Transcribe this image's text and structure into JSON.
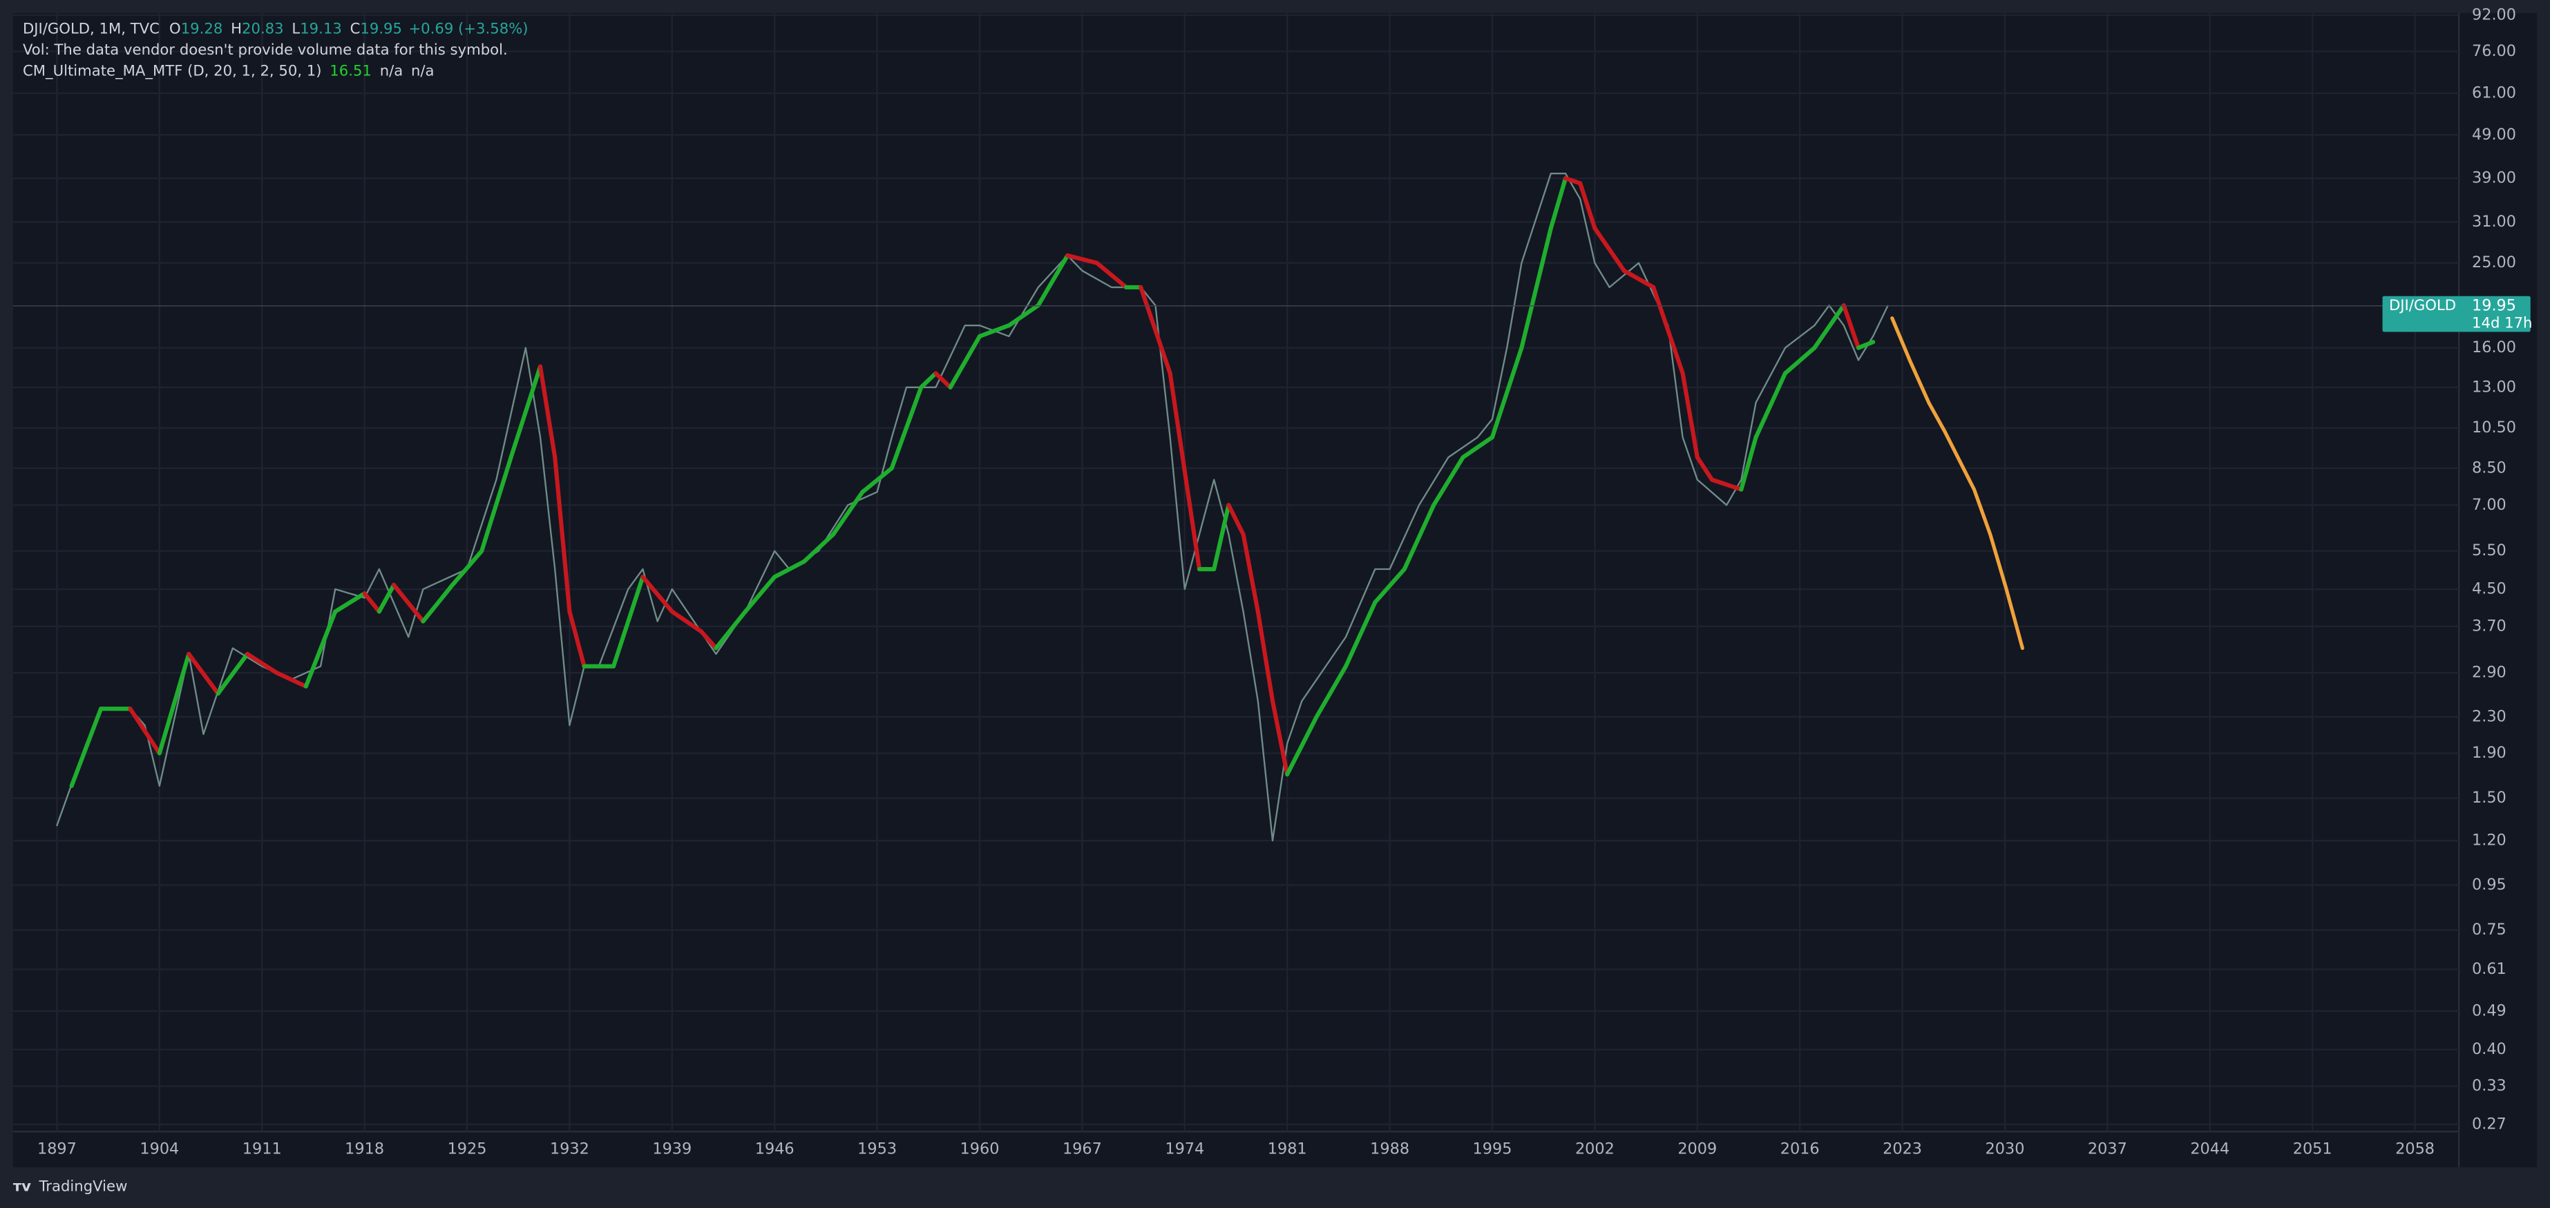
{
  "chart_data": {
    "type": "line",
    "log_scale": true,
    "grid": true,
    "header": {
      "symbol": "DJI/GOLD, 1M, TVC",
      "open_label": "O",
      "open": "19.28",
      "high_label": "H",
      "high": "20.83",
      "low_label": "L",
      "low": "19.13",
      "close_label": "C",
      "close": "19.95",
      "change": "+0.69 (+3.58%)"
    },
    "volume_note": "Vol: The data vendor doesn't provide volume data for this symbol.",
    "indicator": {
      "name": "CM_Ultimate_MA_MTF (D, 20, 1, 2, 50, 1)",
      "value": "16.51",
      "v2": "n/a",
      "v3": "n/a"
    },
    "last_price": {
      "symbol": "DJI/GOLD",
      "value": 19.95,
      "value_label": "19.95",
      "countdown": "14d 17h",
      "color": "#26a69a"
    },
    "brand": "TradingView",
    "xlim": [
      1894,
      2061
    ],
    "xticks": [
      1897,
      1904,
      1911,
      1918,
      1925,
      1932,
      1939,
      1946,
      1953,
      1960,
      1967,
      1974,
      1981,
      1988,
      1995,
      2002,
      2009,
      2016,
      2023,
      2030,
      2037,
      2044,
      2051,
      2058
    ],
    "ylim": [
      0.26,
      93
    ],
    "yticks": [
      {
        "value": 92,
        "label": "92.00"
      },
      {
        "value": 76,
        "label": "76.00"
      },
      {
        "value": 61,
        "label": "61.00"
      },
      {
        "value": 49,
        "label": "49.00"
      },
      {
        "value": 39,
        "label": "39.00"
      },
      {
        "value": 31,
        "label": "31.00"
      },
      {
        "value": 25,
        "label": "25.00"
      },
      {
        "value": 16,
        "label": "16.00"
      },
      {
        "value": 13,
        "label": "13.00"
      },
      {
        "value": 10.5,
        "label": "10.50"
      },
      {
        "value": 8.5,
        "label": "8.50"
      },
      {
        "value": 7,
        "label": "7.00"
      },
      {
        "value": 5.5,
        "label": "5.50"
      },
      {
        "value": 4.5,
        "label": "4.50"
      },
      {
        "value": 3.7,
        "label": "3.70"
      },
      {
        "value": 2.9,
        "label": "2.90"
      },
      {
        "value": 2.3,
        "label": "2.30"
      },
      {
        "value": 1.9,
        "label": "1.90"
      },
      {
        "value": 1.5,
        "label": "1.50"
      },
      {
        "value": 1.2,
        "label": "1.20"
      },
      {
        "value": 0.95,
        "label": "0.95"
      },
      {
        "value": 0.75,
        "label": "0.75"
      },
      {
        "value": 0.61,
        "label": "0.61"
      },
      {
        "value": 0.49,
        "label": "0.49"
      },
      {
        "value": 0.4,
        "label": "0.40"
      },
      {
        "value": 0.33,
        "label": "0.33"
      },
      {
        "value": 0.27,
        "label": "0.27"
      }
    ],
    "price": {
      "color": "#6f8c88",
      "x": [
        1897,
        1899,
        1900,
        1902,
        1903,
        1904,
        1906,
        1907,
        1909,
        1911,
        1913,
        1915,
        1916,
        1918,
        1919,
        1921,
        1922,
        1925,
        1927,
        1929,
        1930,
        1931,
        1932,
        1933,
        1934,
        1936,
        1937,
        1938,
        1939,
        1942,
        1944,
        1946,
        1947,
        1949,
        1951,
        1953,
        1954,
        1955,
        1957,
        1959,
        1960,
        1962,
        1964,
        1966,
        1967,
        1969,
        1971,
        1972,
        1973,
        1974,
        1975,
        1976,
        1977,
        1978,
        1979,
        1980,
        1981,
        1982,
        1985,
        1987,
        1988,
        1990,
        1992,
        1994,
        1995,
        1996,
        1997,
        1999,
        2000,
        2001,
        2002,
        2003,
        2005,
        2007,
        2008,
        2009,
        2011,
        2012,
        2013,
        2015,
        2017,
        2018,
        2019,
        2020,
        2021,
        2022
      ],
      "values": [
        1.3,
        2.0,
        2.4,
        2.4,
        2.2,
        1.6,
        3.2,
        2.1,
        3.3,
        3.0,
        2.8,
        3.0,
        4.5,
        4.3,
        5.0,
        3.5,
        4.5,
        5.0,
        8,
        16,
        10,
        5,
        2.2,
        3.0,
        3.0,
        4.5,
        5.0,
        3.8,
        4.5,
        3.2,
        4.0,
        5.5,
        5.0,
        5.5,
        7.0,
        7.5,
        10,
        13,
        13,
        18,
        18,
        17,
        22,
        26,
        24,
        22,
        22,
        20,
        10,
        4.5,
        6,
        8,
        6,
        4.0,
        2.5,
        1.2,
        2.0,
        2.5,
        3.5,
        5.0,
        5.0,
        7.0,
        9.0,
        10,
        11,
        16,
        25,
        40,
        40,
        35,
        25,
        22,
        25,
        18,
        10,
        8,
        7,
        8,
        12,
        16,
        18,
        20,
        18,
        15,
        17,
        19.95
      ]
    },
    "ma": {
      "rising_color": "#1fae2e",
      "falling_color": "#c8181e",
      "x": [
        1898,
        1900,
        1902,
        1904,
        1906,
        1908,
        1910,
        1912,
        1914,
        1916,
        1918,
        1919,
        1920,
        1922,
        1924,
        1926,
        1928,
        1930,
        1931,
        1932,
        1933,
        1935,
        1937,
        1939,
        1941,
        1942,
        1944,
        1946,
        1948,
        1950,
        1952,
        1954,
        1956,
        1957,
        1958,
        1960,
        1962,
        1964,
        1966,
        1968,
        1970,
        1971,
        1973,
        1975,
        1976,
        1977,
        1978,
        1979,
        1980,
        1981,
        1983,
        1985,
        1987,
        1989,
        1991,
        1993,
        1995,
        1997,
        1999,
        2000,
        2001,
        2002,
        2004,
        2006,
        2008,
        2009,
        2010,
        2012,
        2013,
        2015,
        2017,
        2019,
        2020,
        2021
      ],
      "values": [
        1.6,
        2.4,
        2.4,
        1.9,
        3.2,
        2.6,
        3.2,
        2.9,
        2.7,
        4.0,
        4.4,
        4.0,
        4.6,
        3.8,
        4.6,
        5.5,
        9,
        14.5,
        9,
        4,
        3.0,
        3.0,
        4.8,
        4.0,
        3.6,
        3.3,
        4.0,
        4.8,
        5.2,
        6.0,
        7.5,
        8.5,
        13,
        14,
        13,
        17,
        18,
        20,
        26,
        25,
        22,
        22,
        14,
        5,
        5,
        7,
        6,
        4,
        2.5,
        1.7,
        2.3,
        3.0,
        4.2,
        5.0,
        7,
        9,
        10,
        16,
        30,
        39,
        38,
        30,
        24,
        22,
        14,
        9,
        8,
        7.6,
        10,
        14,
        16,
        20,
        16,
        16.5
      ]
    },
    "projection": {
      "color": "#f0a23a",
      "x": [
        2022.3,
        2023.5,
        2024.8,
        2025.9,
        2027.9,
        2029,
        2030.1,
        2031.2
      ],
      "values": [
        18.7,
        15,
        12,
        10.3,
        7.6,
        6,
        4.5,
        3.3
      ]
    }
  }
}
